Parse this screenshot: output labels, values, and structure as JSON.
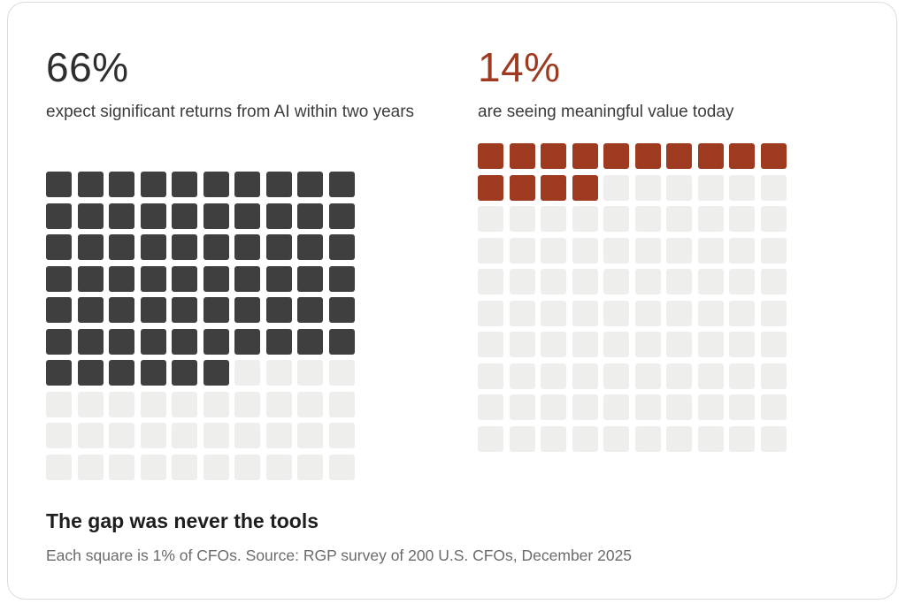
{
  "chart_data": [
    {
      "type": "waffle",
      "stat_label": "66%",
      "description": "expect significant returns from AI within two years",
      "value": 66,
      "total": 100,
      "rows": 10,
      "columns": 10,
      "filled_color": "#3f3f3f",
      "empty_color": "#eeeeec",
      "stat_color": "#2e2e2e"
    },
    {
      "type": "waffle",
      "stat_label": "14%",
      "description": "are seeing meaningful value today",
      "value": 14,
      "total": 100,
      "rows": 10,
      "columns": 10,
      "filled_color": "#9e3a1f",
      "empty_color": "#eeeeec",
      "stat_color": "#9e3a1f"
    }
  ],
  "footer": {
    "title": "The gap was never the tools",
    "note": "Each square is 1% of CFOs. Source: RGP survey of 200 U.S. CFOs, December 2025"
  }
}
